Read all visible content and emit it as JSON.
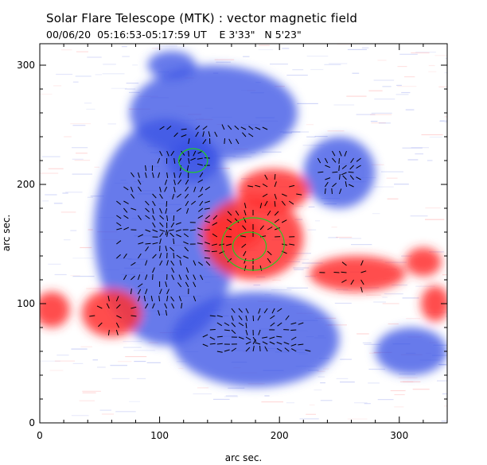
{
  "header": {
    "title": "Solar Flare Telescope (MTK) : vector magnetic field",
    "subtitle": "00/06/20  05:16:53-05:17:59 UT    E 3'33\"   N 5'23\""
  },
  "chart_data": {
    "type": "heatmap",
    "xlabel": "arc sec.",
    "ylabel": "arc sec.",
    "xlim": [
      0,
      340
    ],
    "ylim": [
      0,
      318
    ],
    "x_ticks": [
      0,
      100,
      200,
      300
    ],
    "y_ticks": [
      0,
      100,
      200,
      300
    ],
    "colors": {
      "negative_polarity": "#3c55e6",
      "positive_polarity": "#ff3030",
      "contour": "#22cc22",
      "vectors": "#000000",
      "background": "#ffffff"
    },
    "regions": [
      {
        "polarity": "negative",
        "cx": 105,
        "cy": 160,
        "rx": 60,
        "ry": 95
      },
      {
        "polarity": "negative",
        "cx": 145,
        "cy": 260,
        "rx": 70,
        "ry": 40
      },
      {
        "polarity": "negative",
        "cx": 128,
        "cy": 220,
        "rx": 22,
        "ry": 18
      },
      {
        "polarity": "negative",
        "cx": 180,
        "cy": 70,
        "rx": 70,
        "ry": 40
      },
      {
        "polarity": "negative",
        "cx": 110,
        "cy": 300,
        "rx": 20,
        "ry": 12
      },
      {
        "polarity": "negative",
        "cx": 250,
        "cy": 210,
        "rx": 30,
        "ry": 30
      },
      {
        "polarity": "negative",
        "cx": 310,
        "cy": 60,
        "rx": 30,
        "ry": 20
      },
      {
        "polarity": "positive",
        "cx": 178,
        "cy": 155,
        "rx": 42,
        "ry": 35
      },
      {
        "polarity": "positive",
        "cx": 195,
        "cy": 195,
        "rx": 30,
        "ry": 18
      },
      {
        "polarity": "positive",
        "cx": 160,
        "cy": 160,
        "rx": 25,
        "ry": 15
      },
      {
        "polarity": "positive",
        "cx": 60,
        "cy": 92,
        "rx": 25,
        "ry": 20
      },
      {
        "polarity": "positive",
        "cx": 10,
        "cy": 95,
        "rx": 15,
        "ry": 15
      },
      {
        "polarity": "positive",
        "cx": 265,
        "cy": 125,
        "rx": 40,
        "ry": 15
      },
      {
        "polarity": "positive",
        "cx": 320,
        "cy": 135,
        "rx": 15,
        "ry": 12
      },
      {
        "polarity": "positive",
        "cx": 330,
        "cy": 100,
        "rx": 12,
        "ry": 15
      }
    ],
    "contours": [
      {
        "cx": 128,
        "cy": 220,
        "rx": 12,
        "ry": 10
      },
      {
        "cx": 175,
        "cy": 148,
        "rx": 14,
        "ry": 12
      },
      {
        "cx": 178,
        "cy": 150,
        "rx": 26,
        "ry": 22
      }
    ]
  }
}
